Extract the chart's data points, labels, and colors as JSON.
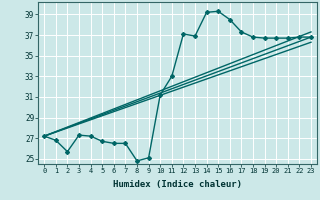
{
  "xlabel": "Humidex (Indice chaleur)",
  "ylabel": "",
  "bg_color": "#cce8e8",
  "grid_color": "#ffffff",
  "line_color": "#006666",
  "xlim": [
    -0.5,
    23.5
  ],
  "ylim": [
    24.5,
    40.2
  ],
  "yticks": [
    25,
    27,
    29,
    31,
    33,
    35,
    37,
    39
  ],
  "xticks": [
    0,
    1,
    2,
    3,
    4,
    5,
    6,
    7,
    8,
    9,
    10,
    11,
    12,
    13,
    14,
    15,
    16,
    17,
    18,
    19,
    20,
    21,
    22,
    23
  ],
  "series": [
    {
      "x": [
        0,
        1,
        2,
        3,
        4,
        5,
        6,
        7,
        8,
        9,
        10,
        11,
        12,
        13,
        14,
        15,
        16,
        17,
        18,
        19,
        20,
        21,
        22,
        23
      ],
      "y": [
        27.2,
        26.8,
        25.7,
        27.3,
        27.2,
        26.7,
        26.5,
        26.5,
        24.8,
        25.1,
        31.2,
        33.0,
        37.1,
        36.9,
        39.2,
        39.3,
        38.5,
        37.3,
        36.8,
        36.7,
        36.7,
        36.7,
        36.8,
        36.8
      ],
      "marker": "D",
      "markersize": 2.0,
      "linewidth": 1.0
    },
    {
      "x": [
        0,
        23
      ],
      "y": [
        27.2,
        36.8
      ],
      "marker": null,
      "linewidth": 1.0
    },
    {
      "x": [
        0,
        23
      ],
      "y": [
        27.2,
        36.3
      ],
      "marker": null,
      "linewidth": 1.0
    },
    {
      "x": [
        0,
        23
      ],
      "y": [
        27.2,
        37.3
      ],
      "marker": null,
      "linewidth": 1.0
    }
  ]
}
